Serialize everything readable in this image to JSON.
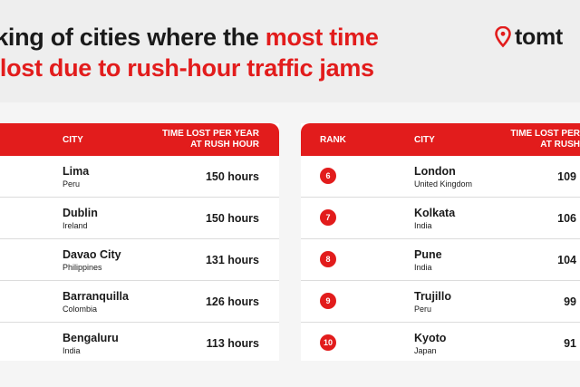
{
  "title": {
    "line1_plain": "nking of cities where the ",
    "line1_highlight": "most time",
    "line2_highlight": "s lost due to rush-hour traffic jams"
  },
  "logo": {
    "icon": "location-pin-icon",
    "text": "tomt"
  },
  "left_table": {
    "headers": {
      "city": "CITY",
      "time_line1": "TIME LOST PER YEAR",
      "time_line2": "AT RUSH HOUR"
    },
    "rows": [
      {
        "city": "Lima",
        "country": "Peru",
        "hours": "150 hours"
      },
      {
        "city": "Dublin",
        "country": "Ireland",
        "hours": "150 hours"
      },
      {
        "city": "Davao City",
        "country": "Philippines",
        "hours": "131 hours"
      },
      {
        "city": "Barranquilla",
        "country": "Colombia",
        "hours": "126 hours"
      },
      {
        "city": "Bengaluru",
        "country": "India",
        "hours": "113 hours"
      }
    ]
  },
  "right_table": {
    "headers": {
      "rank": "RANK",
      "city": "CITY",
      "time_line1": "TIME LOST PER",
      "time_line2": "AT RUSH"
    },
    "rows": [
      {
        "rank": "6",
        "city": "London",
        "country": "United Kingdom",
        "hours": "109"
      },
      {
        "rank": "7",
        "city": "Kolkata",
        "country": "India",
        "hours": "106"
      },
      {
        "rank": "8",
        "city": "Pune",
        "country": "India",
        "hours": "104"
      },
      {
        "rank": "9",
        "city": "Trujillo",
        "country": "Peru",
        "hours": "99"
      },
      {
        "rank": "10",
        "city": "Kyoto",
        "country": "Japan",
        "hours": "91"
      }
    ]
  },
  "colors": {
    "accent": "#e21c1c",
    "header_bg": "#eeeeee",
    "page_bg": "#f5f5f5"
  }
}
